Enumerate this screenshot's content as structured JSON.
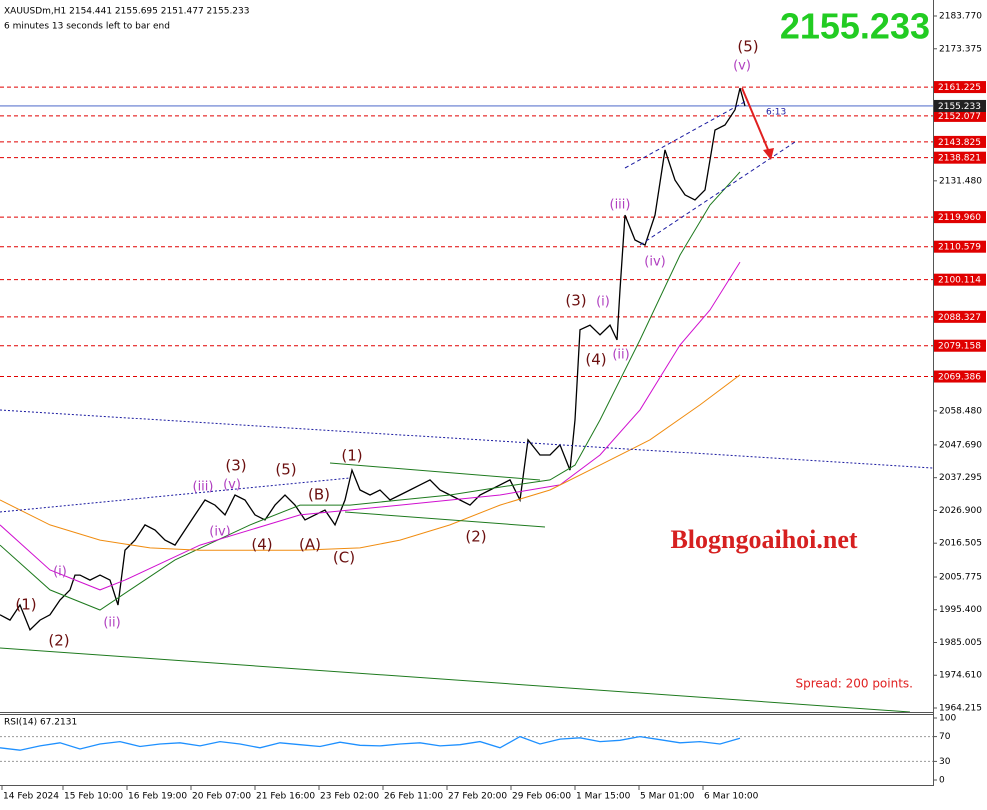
{
  "chart_data": [
    {
      "type": "line",
      "symbol_line": "XAUUSDm,H1  2154.441 2155.695 2151.477 2155.233",
      "timer_text": "6 minutes 13 seconds left to bar end",
      "timer_short": "6:13",
      "last_price": 2155.233,
      "watermark": "Blogngoaihoi.net",
      "spread_text": "Spread: 200 points.",
      "ylim": [
        1962.95,
        2188.85
      ],
      "xlim": [
        0,
        466.5
      ],
      "yticks": [
        {
          "value": 2183.77,
          "label": "2183.770"
        },
        2173.375,
        {
          "value": 2131.48,
          "label": "2131.480"
        },
        {
          "value": 2058.48,
          "label": "2058.480"
        },
        {
          "value": 2047.69,
          "label": "2047.690"
        },
        2037.295,
        {
          "value": 2026.9,
          "label": "2026.900"
        },
        2016.505,
        2005.775,
        {
          "value": 1995.4,
          "label": "1995.400"
        },
        1985.005,
        {
          "value": 1974.61,
          "label": "1974.610"
        },
        1964.215
      ],
      "xticks": [
        {
          "value": 1,
          "label": "14 Feb 2024"
        },
        {
          "value": 31.5,
          "label": "15 Feb 10:00"
        },
        {
          "value": 63.5,
          "label": "16 Feb 19:00"
        },
        {
          "value": 95.5,
          "label": "20 Feb 07:00"
        },
        {
          "value": 127.5,
          "label": "21 Feb 16:00"
        },
        {
          "value": 159.5,
          "label": "23 Feb 02:00"
        },
        {
          "value": 191.5,
          "label": "26 Feb 11:00"
        },
        {
          "value": 223.5,
          "label": "27 Feb 20:00"
        },
        {
          "value": 255.5,
          "label": "29 Feb 06:00"
        },
        {
          "value": 287.5,
          "label": "1 Mar 15:00"
        },
        {
          "value": 319.5,
          "label": "5 Mar 01:00"
        },
        {
          "value": 351.5,
          "label": "6 Mar 10:00"
        }
      ],
      "levels": [
        2161.225,
        2152.077,
        2143.825,
        2138.821,
        {
          "value": 2119.96,
          "label": "2119.960"
        },
        2110.579,
        2100.114,
        2088.327,
        2079.158,
        2069.386
      ],
      "level_color": "#e00000",
      "annotations": [
        "(5)",
        "(v)",
        "(iii)",
        "(iv)",
        "(3)",
        "(i)",
        "(4)",
        "(ii)",
        "(1)",
        "(3)",
        "(5)",
        "(iii)",
        "(v)",
        "(B)",
        "(iv)",
        "(4)",
        "(A)",
        "(C)",
        "(2)",
        "(i)",
        "(1)",
        "(2)",
        "(ii)"
      ],
      "series": [
        {
          "color": "#000000",
          "x": [
            0,
            5,
            10,
            15,
            20,
            25,
            30,
            35,
            37.5,
            40,
            45,
            50,
            55,
            59,
            62.5,
            67.5,
            72.5,
            77.5,
            82.5,
            87.5,
            92.5,
            97.5,
            102.5,
            107.5,
            112.5,
            117.5,
            122.5,
            127.5,
            132.5,
            137.5,
            142.5,
            147.5,
            152.5,
            157.5,
            162.5,
            167.5,
            172.5,
            176,
            180,
            185,
            190,
            195,
            200,
            205,
            210,
            215,
            220,
            225,
            230,
            235,
            240,
            245,
            250,
            255,
            260,
            264,
            270,
            275,
            280,
            285,
            287.5,
            290,
            295,
            300,
            305,
            308.5,
            310,
            312.5,
            317.5,
            322.5,
            327.5,
            332.5,
            337.5,
            342.5,
            347.5,
            352.5,
            357.5,
            362.5,
            367.5,
            370,
            372.5
          ],
          "values": [
            1993.8,
            1992.1,
            1996.9,
            1989.0,
            1992.1,
            1993.8,
            1998.5,
            2001.7,
            2006.4,
            2006.4,
            2004.8,
            2006.4,
            2004.8,
            1996.9,
            2014.3,
            2017.5,
            2022.3,
            2020.7,
            2017.5,
            2015.9,
            2020.7,
            2025.5,
            2030.2,
            2028.6,
            2025.5,
            2031.8,
            2030.2,
            2025.5,
            2023.9,
            2028.6,
            2031.8,
            2028.6,
            2023.9,
            2025.5,
            2027.0,
            2022.3,
            2030.2,
            2039.7,
            2033.4,
            2031.8,
            2033.4,
            2030.2,
            2031.8,
            2033.4,
            2035.0,
            2036.6,
            2033.4,
            2031.8,
            2030.2,
            2028.6,
            2031.8,
            2033.4,
            2035.0,
            2036.6,
            2030.2,
            2049.3,
            2044.5,
            2044.5,
            2047.7,
            2039.7,
            2055.6,
            2084.2,
            2085.7,
            2082.6,
            2085.7,
            2081.0,
            2096.9,
            2120.6,
            2112.7,
            2111.1,
            2120.6,
            2141.3,
            2131.7,
            2127.0,
            2125.4,
            2128.6,
            2147.6,
            2149.2,
            2154.0,
            2160.9,
            2155.2
          ]
        },
        {
          "color": "#1e7a1e",
          "x": [
            0,
            25,
            50,
            65,
            87.5,
            125,
            150,
            175,
            200,
            225,
            250,
            275,
            287.5,
            300,
            320,
            340,
            355,
            370
          ],
          "values": [
            2015.9,
            2001.7,
            1995.3,
            2001.7,
            2011.2,
            2022.3,
            2028.6,
            2028.6,
            2030.2,
            2031.8,
            2034.3,
            2036.6,
            2041.3,
            2055.6,
            2081.0,
            2107.9,
            2123.8,
            2134.3
          ]
        },
        {
          "color": "#d010d0",
          "x": [
            0,
            25,
            50,
            62.5,
            100,
            150,
            200,
            250,
            280,
            300,
            320,
            340,
            355,
            370
          ],
          "values": [
            2022.3,
            2008.0,
            2001.7,
            2004.8,
            2015.9,
            2025.5,
            2028.6,
            2031.8,
            2035.0,
            2044.5,
            2058.8,
            2079.4,
            2090.5,
            2105.7
          ]
        },
        {
          "color": "#f08c10",
          "x": [
            0,
            25,
            50,
            75,
            100,
            150,
            180,
            200,
            225,
            250,
            275,
            300,
            325,
            350,
            370
          ],
          "values": [
            2030.2,
            2022.3,
            2017.5,
            2015.0,
            2014.3,
            2014.3,
            2015.0,
            2017.5,
            2022.3,
            2028.6,
            2033.4,
            2041.3,
            2049.3,
            2060.4,
            2069.9
          ]
        }
      ]
    },
    {
      "type": "line",
      "label": "RSI(14) 67.2131",
      "ylim": [
        0,
        100
      ],
      "xlim": [
        0,
        466.5
      ],
      "yticks": [
        100,
        70,
        30,
        0
      ],
      "levels": [
        70,
        30
      ],
      "series": [
        {
          "color": "#1e90ff",
          "x": [
            0,
            10,
            20,
            30,
            40,
            50,
            60,
            70,
            80,
            90,
            100,
            110,
            120,
            130,
            140,
            150,
            160,
            170,
            180,
            190,
            200,
            210,
            220,
            230,
            240,
            250,
            260,
            270,
            280,
            290,
            300,
            310,
            320,
            330,
            340,
            350,
            360,
            370
          ],
          "values": [
            52,
            48,
            55,
            60,
            50,
            58,
            62,
            54,
            58,
            60,
            55,
            62,
            58,
            52,
            60,
            57,
            54,
            61,
            56,
            55,
            58,
            60,
            55,
            57,
            62,
            52,
            70,
            58,
            66,
            68,
            62,
            64,
            70,
            65,
            60,
            62,
            58,
            67.2131
          ]
        }
      ]
    }
  ]
}
